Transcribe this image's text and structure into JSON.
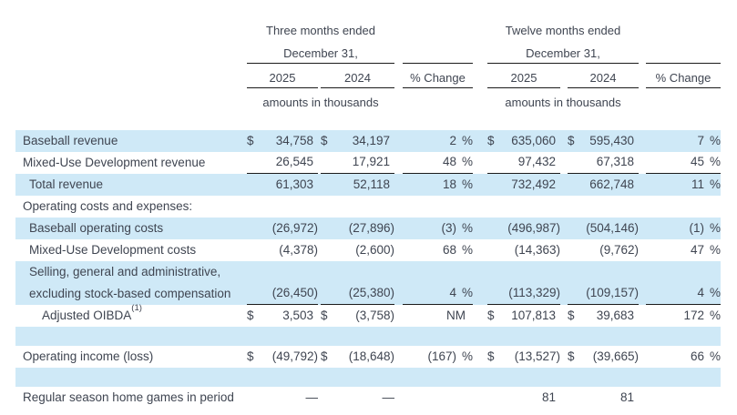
{
  "colors": {
    "row_highlight": "#cfe9f7",
    "text": "#3f4551",
    "rule": "#1b1b1b"
  },
  "table": {
    "header": {
      "three_months": {
        "title": "Three months ended",
        "sub": "December 31,",
        "y2025": "2025",
        "y2024": "2024",
        "pct": "% Change",
        "note": "amounts in thousands"
      },
      "twelve_months": {
        "title": "Twelve months ended",
        "sub": "December 31,",
        "y2025": "2025",
        "y2024": "2024",
        "pct": "% Change",
        "note": "amounts in thousands"
      }
    },
    "rows": [
      {
        "type": "data",
        "shaded": true,
        "indent": 0,
        "dollar": true,
        "label": "Baseball revenue",
        "tm": {
          "y2025": "34,758",
          "y2024": "34,197",
          "pct": "2 %"
        },
        "tw": {
          "y2025": "635,060",
          "y2024": "595,430",
          "pct": "7 %"
        }
      },
      {
        "type": "data",
        "shaded": false,
        "indent": 0,
        "rule": true,
        "label": "Mixed-Use Development revenue",
        "tm": {
          "y2025": "26,545",
          "y2024": "17,921",
          "pct": "48 %"
        },
        "tw": {
          "y2025": "97,432",
          "y2024": "67,318",
          "pct": "45 %"
        }
      },
      {
        "type": "data",
        "shaded": true,
        "indent": 1,
        "label": "Total revenue",
        "tm": {
          "y2025": "61,303",
          "y2024": "52,118",
          "pct": "18 %"
        },
        "tw": {
          "y2025": "732,492",
          "y2024": "662,748",
          "pct": "11 %"
        }
      },
      {
        "type": "data",
        "shaded": false,
        "indent": 0,
        "label": "Operating costs and expenses:"
      },
      {
        "type": "data",
        "shaded": true,
        "indent": 1,
        "label": "Baseball operating costs",
        "tm": {
          "y2025": "(26,972)",
          "y2024": "(27,896)",
          "pct": "(3) %"
        },
        "tw": {
          "y2025": "(496,987)",
          "y2024": "(504,146)",
          "pct": "(1) %"
        }
      },
      {
        "type": "data",
        "shaded": false,
        "indent": 1,
        "label": "Mixed-Use Development costs",
        "tm": {
          "y2025": "(4,378)",
          "y2024": "(2,600)",
          "pct": "68 %"
        },
        "tw": {
          "y2025": "(14,363)",
          "y2024": "(9,762)",
          "pct": "47 %"
        }
      },
      {
        "type": "data",
        "shaded": true,
        "indent": 1,
        "tall": true,
        "rule": true,
        "label": "Selling, general and administrative,",
        "label2": "excluding stock-based compensation",
        "tm": {
          "y2025": "(26,450)",
          "y2024": "(25,380)",
          "pct": "4 %"
        },
        "tw": {
          "y2025": "(113,329)",
          "y2024": "(109,157)",
          "pct": "4 %"
        }
      },
      {
        "type": "data",
        "shaded": false,
        "indent": 2,
        "dollar": true,
        "label": "Adjusted OIBDA",
        "sup": "(1)",
        "tm": {
          "y2025": "3,503",
          "y2024": "(3,758)",
          "pct": "NM"
        },
        "tw": {
          "y2025": "107,813",
          "y2024": "39,683",
          "pct": "172 %"
        }
      },
      {
        "type": "spacer",
        "shaded": true
      },
      {
        "type": "data",
        "shaded": false,
        "indent": 0,
        "dollar": true,
        "label": "Operating income (loss)",
        "tm": {
          "y2025": "(49,792)",
          "y2024": "(18,648)",
          "pct": "(167) %"
        },
        "tw": {
          "y2025": "(13,527)",
          "y2024": "(39,665)",
          "pct": "66 %"
        }
      },
      {
        "type": "spacer",
        "shaded": true
      },
      {
        "type": "data",
        "shaded": false,
        "indent": 0,
        "label": "Regular season home games in period",
        "tm": {
          "y2025": "—",
          "y2024": "—",
          "pct": ""
        },
        "tw": {
          "y2025": "81",
          "y2024": "81",
          "pct": ""
        }
      }
    ]
  }
}
